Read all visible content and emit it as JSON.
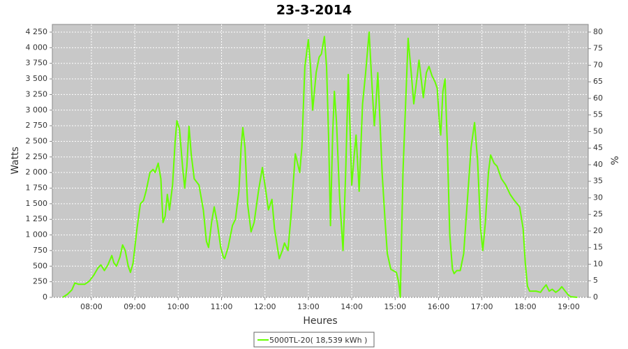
{
  "chart_data": {
    "type": "line",
    "title": "23-3-2014",
    "x_label": "Heures",
    "y_label": "Watts",
    "y2_label": "%",
    "x": [
      7.34,
      7.45,
      7.55,
      7.62,
      7.7,
      7.85,
      7.95,
      8.05,
      8.15,
      8.22,
      8.3,
      8.38,
      8.47,
      8.52,
      8.58,
      8.66,
      8.72,
      8.78,
      8.85,
      8.9,
      8.96,
      9.05,
      9.13,
      9.2,
      9.26,
      9.35,
      9.42,
      9.47,
      9.54,
      9.6,
      9.65,
      9.7,
      9.75,
      9.8,
      9.87,
      9.93,
      9.97,
      10.03,
      10.1,
      10.15,
      10.2,
      10.25,
      10.3,
      10.37,
      10.48,
      10.58,
      10.65,
      10.7,
      10.77,
      10.83,
      10.9,
      10.98,
      11.04,
      11.07,
      11.15,
      11.25,
      11.32,
      11.4,
      11.45,
      11.49,
      11.54,
      11.6,
      11.68,
      11.75,
      11.85,
      11.94,
      12.02,
      12.08,
      12.16,
      12.22,
      12.33,
      12.4,
      12.45,
      12.53,
      12.6,
      12.7,
      12.75,
      12.8,
      12.85,
      12.92,
      13.0,
      13.05,
      13.1,
      13.18,
      13.25,
      13.3,
      13.37,
      13.42,
      13.47,
      13.51,
      13.56,
      13.6,
      13.65,
      13.72,
      13.8,
      13.86,
      13.92,
      13.97,
      14.0,
      14.06,
      14.1,
      14.14,
      14.17,
      14.25,
      14.32,
      14.4,
      14.45,
      14.52,
      14.56,
      14.6,
      14.64,
      14.7,
      14.77,
      14.82,
      14.9,
      15.03,
      15.08,
      15.12,
      15.18,
      15.3,
      15.37,
      15.43,
      15.5,
      15.55,
      15.6,
      15.65,
      15.72,
      15.78,
      15.85,
      15.92,
      15.97,
      16.02,
      16.05,
      16.1,
      16.15,
      16.2,
      16.26,
      16.32,
      16.36,
      16.42,
      16.5,
      16.58,
      16.67,
      16.75,
      16.83,
      16.9,
      16.97,
      17.02,
      17.08,
      17.15,
      17.2,
      17.28,
      17.35,
      17.45,
      17.55,
      17.65,
      17.75,
      17.87,
      17.95,
      18.0,
      18.05,
      18.1,
      18.25,
      18.35,
      18.42,
      18.48,
      18.55,
      18.62,
      18.7,
      18.78,
      18.84,
      18.92,
      19.0,
      19.05,
      19.2
    ],
    "series": [
      {
        "name": "5000TL-20( 18,539 kWh )",
        "color": "#66ff00",
        "values": [
          0,
          50,
          120,
          230,
          210,
          210,
          260,
          350,
          470,
          520,
          430,
          520,
          670,
          550,
          500,
          650,
          840,
          750,
          500,
          400,
          550,
          1100,
          1500,
          1550,
          1700,
          2000,
          2050,
          2000,
          2150,
          1900,
          1200,
          1300,
          1650,
          1400,
          1800,
          2500,
          2830,
          2700,
          2100,
          1750,
          2100,
          2740,
          2300,
          1900,
          1800,
          1400,
          900,
          800,
          1200,
          1450,
          1200,
          800,
          650,
          620,
          800,
          1150,
          1250,
          1700,
          2400,
          2720,
          2400,
          1500,
          1050,
          1200,
          1700,
          2080,
          1700,
          1400,
          1570,
          1100,
          620,
          750,
          870,
          750,
          1300,
          2300,
          2150,
          2000,
          2400,
          3700,
          4130,
          3700,
          3000,
          3600,
          3850,
          3900,
          4180,
          3700,
          2500,
          1150,
          2600,
          3300,
          2800,
          1600,
          750,
          2000,
          3570,
          2500,
          1800,
          2300,
          2600,
          2100,
          1700,
          3100,
          3600,
          4250,
          3600,
          2750,
          3100,
          3600,
          3000,
          2000,
          1200,
          700,
          450,
          400,
          250,
          0,
          2000,
          4150,
          3600,
          3100,
          3500,
          3800,
          3500,
          3200,
          3600,
          3700,
          3550,
          3450,
          3350,
          2800,
          2600,
          3300,
          3500,
          2500,
          1000,
          450,
          380,
          430,
          430,
          700,
          1600,
          2400,
          2800,
          2200,
          1100,
          750,
          1200,
          2000,
          2280,
          2150,
          2100,
          1900,
          1800,
          1650,
          1550,
          1450,
          1100,
          550,
          180,
          100,
          100,
          80,
          150,
          200,
          100,
          130,
          80,
          120,
          170,
          100,
          30,
          10,
          0
        ]
      }
    ],
    "xlim": [
      7.1,
      19.45
    ],
    "xticks": [
      {
        "value": 8,
        "label": "08:00"
      },
      {
        "value": 9,
        "label": "09:00"
      },
      {
        "value": 10,
        "label": "10:00"
      },
      {
        "value": 11,
        "label": "11:00"
      },
      {
        "value": 12,
        "label": "12:00"
      },
      {
        "value": 13,
        "label": "13:00"
      },
      {
        "value": 14,
        "label": "14:00"
      },
      {
        "value": 15,
        "label": "15:00"
      },
      {
        "value": 16,
        "label": "16:00"
      },
      {
        "value": 17,
        "label": "17:00"
      },
      {
        "value": 18,
        "label": "18:00"
      },
      {
        "value": 19,
        "label": "19:00"
      }
    ],
    "ylim": [
      0,
      4373
    ],
    "yticks": [
      0,
      250,
      500,
      750,
      {
        "value": 1000,
        "label": "1 000"
      },
      {
        "value": 1250,
        "label": "1 250"
      },
      {
        "value": 1500,
        "label": "1 500"
      },
      {
        "value": 1750,
        "label": "1 750"
      },
      {
        "value": 2000,
        "label": "2 000"
      },
      {
        "value": 2250,
        "label": "2 250"
      },
      {
        "value": 2500,
        "label": "2 500"
      },
      {
        "value": 2750,
        "label": "2 750"
      },
      {
        "value": 3000,
        "label": "3 000"
      },
      {
        "value": 3250,
        "label": "3 250"
      },
      {
        "value": 3500,
        "label": "3 500"
      },
      {
        "value": 3750,
        "label": "3 750"
      },
      {
        "value": 4000,
        "label": "4 000"
      },
      {
        "value": 4250,
        "label": "4 250"
      }
    ],
    "y2lim": [
      0,
      82.3
    ],
    "y2ticks": [
      0,
      5,
      10,
      15,
      20,
      25,
      30,
      35,
      40,
      45,
      50,
      55,
      60,
      65,
      70,
      75,
      80
    ],
    "grid": true,
    "legend": "bottom"
  }
}
